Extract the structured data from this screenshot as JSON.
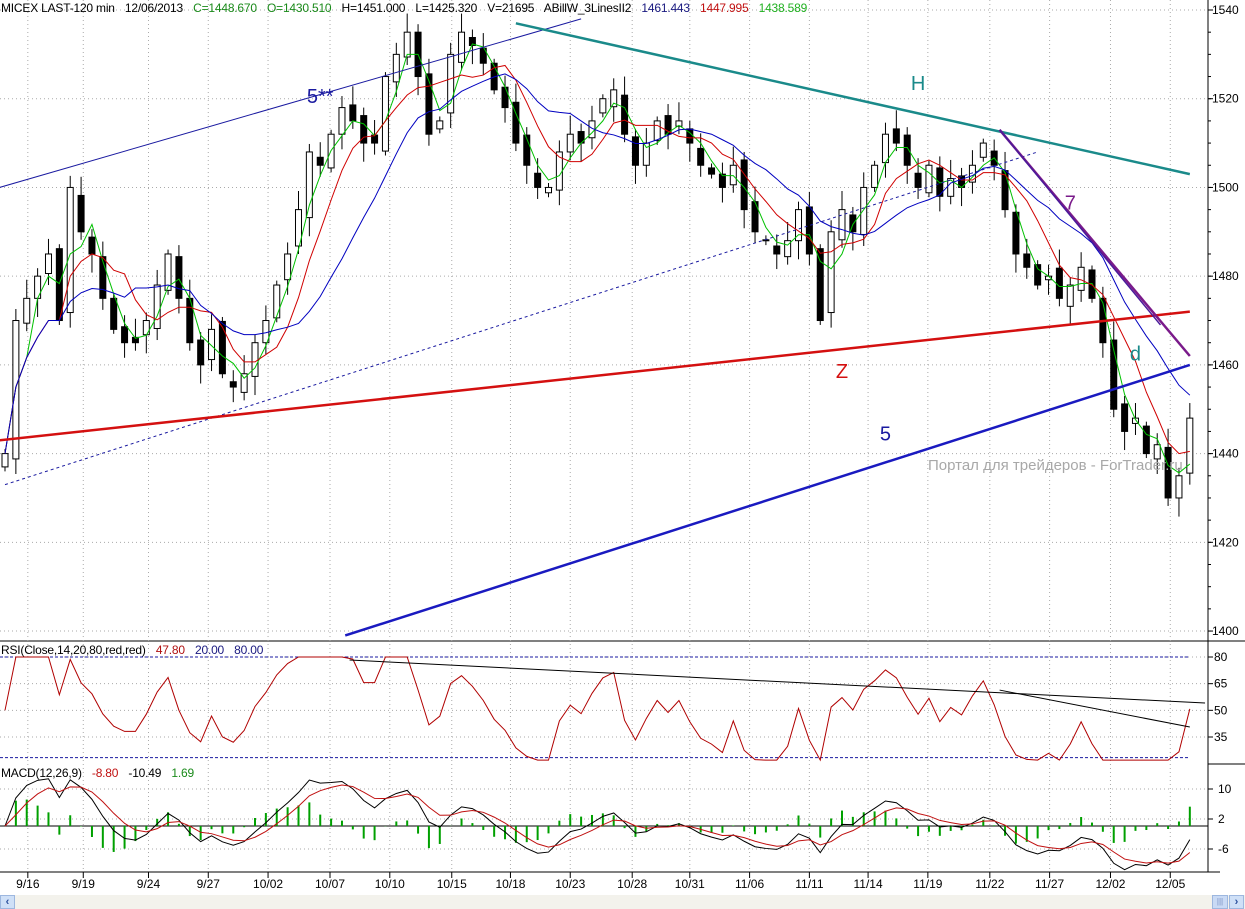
{
  "header": {
    "symbol": "MICEX LAST-120 min",
    "date": "12/06/2013",
    "close": "C=1448.670",
    "open": "O=1430.510",
    "high": "H=1451.000",
    "low": "L=1425.320",
    "volume": "V=21695",
    "indicator": "ABillW_3LinesII2",
    "line1": "1461.443",
    "line2": "1447.995",
    "line3": "1438.589"
  },
  "rsi_header": {
    "label": "RSI(Close,14,20,80,red,red)",
    "value": "47.80",
    "low": "20.00",
    "high": "80.00"
  },
  "macd_header": {
    "label": "MACD(12,26,9)",
    "macd": "-8.80",
    "signal": "-10.49",
    "hist": "1.69"
  },
  "watermark": "Портал для трейдеров - ForTrader.ru",
  "colors": {
    "up": "#ffffff",
    "down": "#000000",
    "ma_fast": "#00c000",
    "ma_mid": "#d00000",
    "ma_slow": "#0000c0",
    "rsi": "#b00000",
    "macd_hist": "#00a000"
  },
  "chart_data": {
    "type": "candlestick",
    "title": "MICEX LAST-120 min",
    "price_ticks": [
      1540,
      1520,
      1500,
      1480,
      1460,
      1440,
      1420,
      1400
    ],
    "ylim": [
      1400,
      1540
    ],
    "closes": [
      1440,
      1470,
      1475,
      1480,
      1485,
      1470,
      1500,
      1490,
      1485,
      1475,
      1468,
      1465,
      1465,
      1470,
      1478,
      1485,
      1475,
      1465,
      1460,
      1468,
      1458,
      1455,
      1458,
      1465,
      1470,
      1478,
      1485,
      1495,
      1508,
      1505,
      1512,
      1518,
      1515,
      1510,
      1510,
      1525,
      1530,
      1535,
      1525,
      1512,
      1515,
      1530,
      1535,
      1532,
      1528,
      1522,
      1518,
      1510,
      1505,
      1500,
      1500,
      1508,
      1512,
      1510,
      1515,
      1520,
      1522,
      1512,
      1505,
      1510,
      1515,
      1512,
      1515,
      1510,
      1505,
      1503,
      1500,
      1505,
      1495,
      1490,
      1488,
      1485,
      1488,
      1495,
      1485,
      1470,
      1490,
      1495,
      1490,
      1500,
      1505,
      1512,
      1510,
      1505,
      1500,
      1505,
      1498,
      1502,
      1500,
      1505,
      1510,
      1505,
      1495,
      1485,
      1482,
      1478,
      1480,
      1475,
      1478,
      1482,
      1475,
      1465,
      1450,
      1445,
      1448,
      1440,
      1442,
      1430,
      1435,
      1448
    ],
    "date_labels": [
      {
        "label": "9/16",
        "bar": 2.1
      },
      {
        "label": "9/19",
        "bar": 7.2
      },
      {
        "label": "9/24",
        "bar": 13.2
      },
      {
        "label": "9/27",
        "bar": 18.7
      },
      {
        "label": "10/02",
        "bar": 24.2
      },
      {
        "label": "10/07",
        "bar": 29.9
      },
      {
        "label": "10/10",
        "bar": 35.4
      },
      {
        "label": "10/15",
        "bar": 41.1
      },
      {
        "label": "10/18",
        "bar": 46.5
      },
      {
        "label": "10/23",
        "bar": 52.0
      },
      {
        "label": "10/28",
        "bar": 57.7
      },
      {
        "label": "10/31",
        "bar": 63.0
      },
      {
        "label": "11/06",
        "bar": 68.5
      },
      {
        "label": "11/11",
        "bar": 74.0
      },
      {
        "label": "11/14",
        "bar": 79.4
      },
      {
        "label": "11/19",
        "bar": 84.9
      },
      {
        "label": "11/22",
        "bar": 90.6
      },
      {
        "label": "11/27",
        "bar": 96.1
      },
      {
        "label": "12/02",
        "bar": 101.7
      },
      {
        "label": "12/05",
        "bar": 107.2
      }
    ],
    "trendlines": [
      {
        "name": "upper-channel-line",
        "p1": [
          -0.5,
          1500
        ],
        "p2": [
          53,
          1538
        ],
        "color": "#1a1aa0",
        "width": 1,
        "dash": ""
      },
      {
        "name": "dashed-support-line",
        "p1": [
          0,
          1433
        ],
        "p2": [
          95,
          1508
        ],
        "color": "#1a1aa0",
        "width": 1,
        "dash": "3,3"
      },
      {
        "name": "teal-resistance-line",
        "p1": [
          47,
          1537
        ],
        "p2": [
          109,
          1503
        ],
        "color": "#1a8a8a",
        "width": 2.5,
        "dash": ""
      },
      {
        "name": "red-neckline",
        "p1": [
          -0.5,
          1443
        ],
        "p2": [
          109,
          1472
        ],
        "color": "#d41010",
        "width": 2.5,
        "dash": ""
      },
      {
        "name": "blue-wave5-line",
        "p1": [
          31.3,
          1399
        ],
        "p2": [
          109,
          1460
        ],
        "color": "#1a1ac0",
        "width": 2.5,
        "dash": ""
      },
      {
        "name": "purple-line-1",
        "p1": [
          91.5,
          1513
        ],
        "p2": [
          109,
          1462
        ],
        "color": "#7a1a8a",
        "width": 2.5,
        "dash": ""
      },
      {
        "name": "purple-line-2",
        "p1": [
          91.5,
          1513
        ],
        "p2": [
          106.3,
          1469
        ],
        "color": "#4a1a9a",
        "width": 1.5,
        "dash": ""
      }
    ],
    "annotations": [
      {
        "text": "5**",
        "bar": 29,
        "price": 1519,
        "color": "#1a1aa0"
      },
      {
        "text": "H",
        "bar": 84,
        "price": 1522,
        "color": "#1a8a8a"
      },
      {
        "text": "Z",
        "bar": 77,
        "price": 1457,
        "color": "#d41010"
      },
      {
        "text": "5",
        "bar": 81,
        "price": 1443,
        "color": "#1a1aa0"
      },
      {
        "text": "7",
        "bar": 98,
        "price": 1495,
        "color": "#7a1a8a"
      },
      {
        "text": "d",
        "bar": 104,
        "price": 1461,
        "color": "#1a8a8a"
      }
    ],
    "rsi": {
      "ticks": [
        80,
        65,
        50,
        35
      ],
      "levels": [
        20,
        80
      ],
      "trendlines": [
        {
          "p1": [
            31.7,
            78.3
          ],
          "p2": [
            110.4,
            54.1
          ]
        },
        {
          "p1": [
            91.5,
            61.4
          ],
          "p2": [
            109,
            40.6
          ]
        }
      ]
    },
    "macd": {
      "ticks": [
        10,
        2,
        -6
      ]
    }
  }
}
